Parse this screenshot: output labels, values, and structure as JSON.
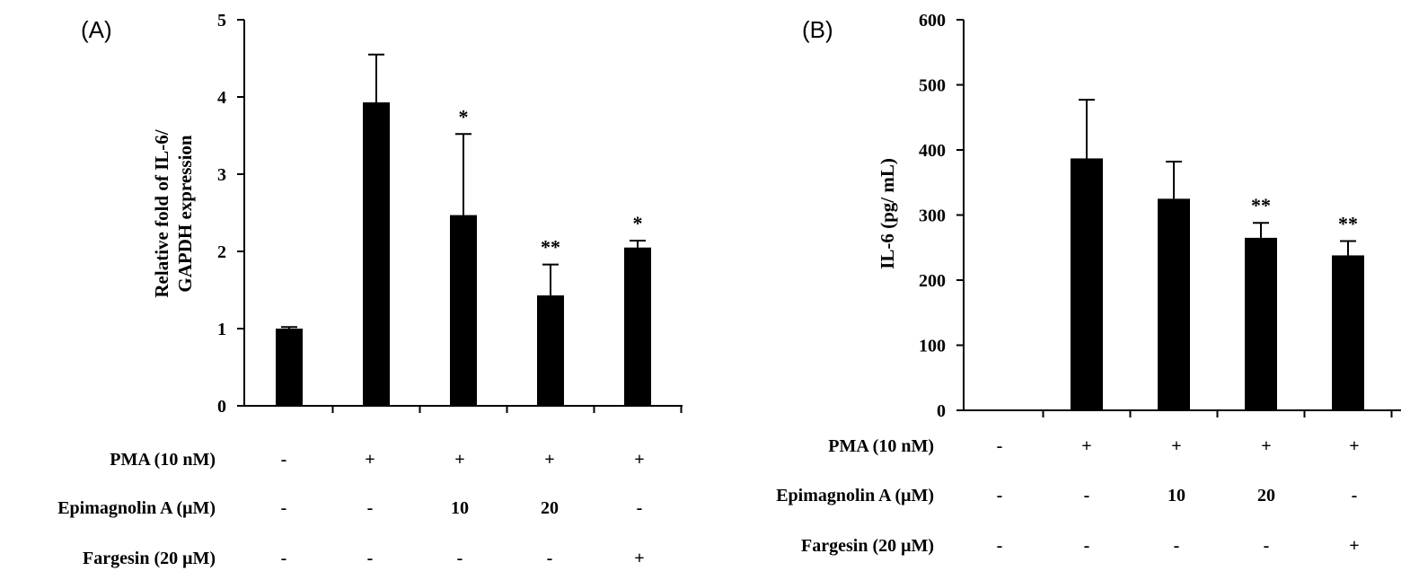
{
  "chart_data": [
    {
      "panel": "(A)",
      "type": "bar",
      "ylabel_lines": [
        "Relative fold of IL-6/",
        "GAPDH expression"
      ],
      "ylim": [
        0,
        5
      ],
      "yticks": [
        0,
        1,
        2,
        3,
        4,
        5
      ],
      "values": [
        1.0,
        3.93,
        2.47,
        1.43,
        2.05
      ],
      "errors": [
        0.02,
        0.62,
        1.05,
        0.4,
        0.09
      ],
      "significance": [
        "",
        "",
        "*",
        "**",
        "*"
      ],
      "treatment_table": [
        {
          "label": "PMA (10 nM)",
          "cells": [
            "-",
            "+",
            "+",
            "+",
            "+"
          ]
        },
        {
          "label": "Epimagnolin A (μM)",
          "cells": [
            "-",
            "-",
            "10",
            "20",
            "-"
          ]
        },
        {
          "label": "Fargesin (20 μM)",
          "cells": [
            "-",
            "-",
            "-",
            "-",
            "+"
          ]
        }
      ]
    },
    {
      "panel": "(B)",
      "type": "bar",
      "ylabel_lines": [
        "IL-6 (pg/ mL)"
      ],
      "ylim": [
        0,
        600
      ],
      "yticks": [
        0,
        100,
        200,
        300,
        400,
        500,
        600
      ],
      "values": [
        0,
        387,
        325,
        265,
        238
      ],
      "errors": [
        0,
        90,
        57,
        23,
        22
      ],
      "significance": [
        "",
        "",
        "",
        "**",
        "**"
      ],
      "treatment_table": [
        {
          "label": "PMA (10 nM)",
          "cells": [
            "-",
            "+",
            "+",
            "+",
            "+"
          ]
        },
        {
          "label": "Epimagnolin A (μM)",
          "cells": [
            "-",
            "-",
            "10",
            "20",
            "-"
          ]
        },
        {
          "label": "Fargesin (20 μM)",
          "cells": [
            "-",
            "-",
            "-",
            "-",
            "+"
          ]
        }
      ]
    }
  ]
}
